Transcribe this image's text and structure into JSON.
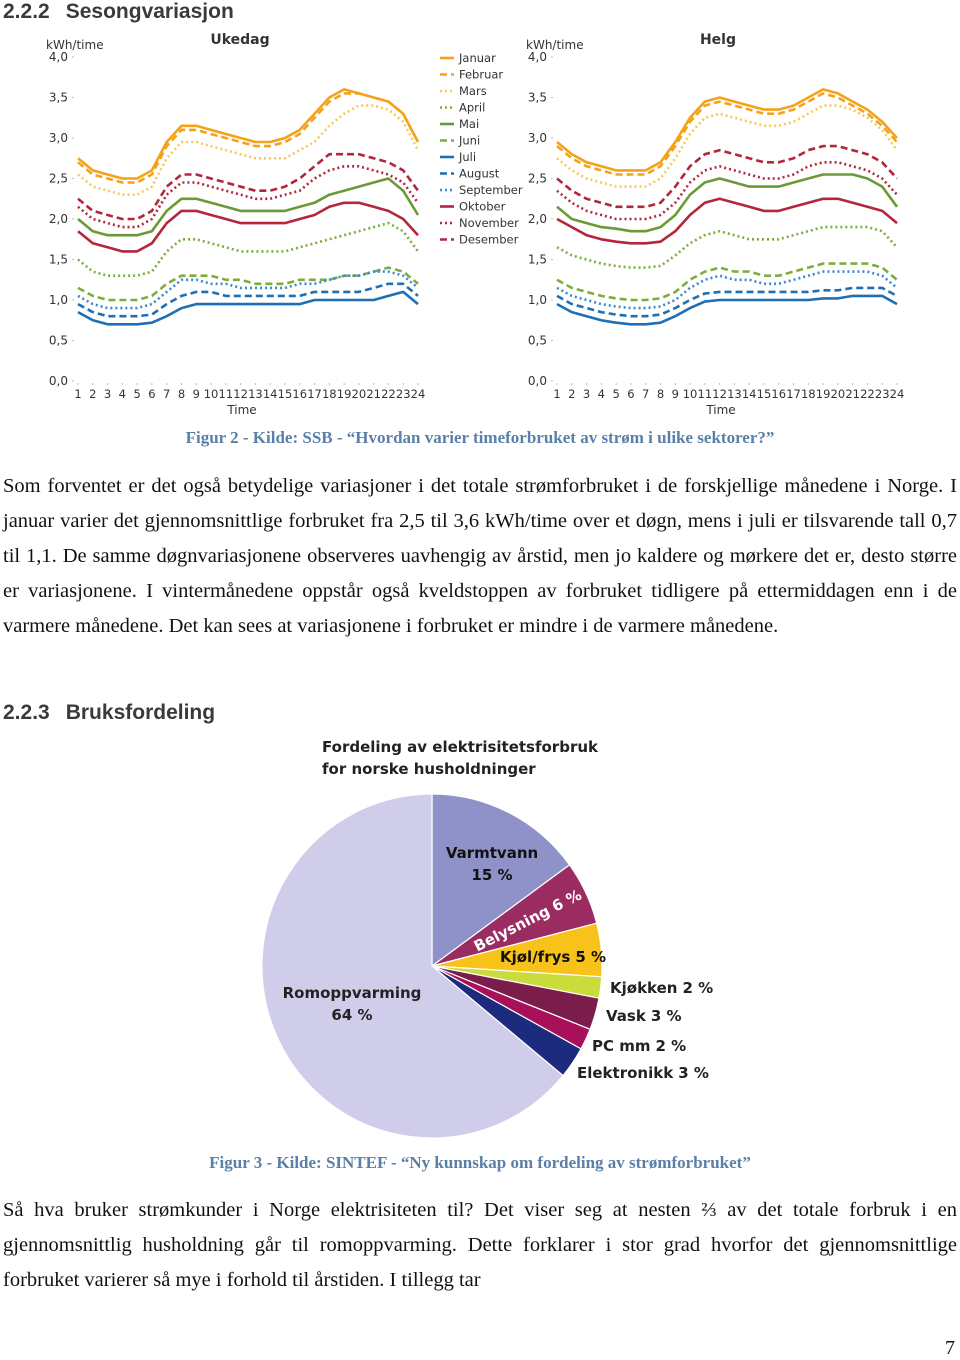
{
  "heading1": {
    "number": "2.2.2",
    "title": "Sesongvariasjon"
  },
  "caption1": "Figur 2 - Kilde: SSB - “Hvordan varier timeforbruket av strøm i ulike sektorer?”",
  "paragraph1": "Som forventet er det også betydelige variasjoner i det totale strømforbruket i de forskjellige månedene i Norge. I januar varier det gjennomsnittlige forbruket fra 2,5 til 3,6 kWh/time over et døgn, mens i juli er tilsvarende tall 0,7 til 1,1. De samme døgnvariasjonene observeres uavhengig av årstid, men jo kaldere og mørkere det er, desto større er variasjonene. I vintermånedene oppstår også kveldstoppen av forbruket tidligere på ettermiddagen enn i de varmere månedene. Det kan sees at variasjonene i forbruket er mindre i de varmere månedene.",
  "heading2": {
    "number": "2.2.3",
    "title": "Bruksfordeling"
  },
  "caption2": "Figur 3 - Kilde: SINTEF - “Ny kunnskap om fordeling av strømforbruket”",
  "paragraph2": "Så hva bruker strømkunder i Norge elektrisiteten til? Det viser seg at nesten ⅔ av det totale forbruk i en gjennomsnittlig husholdning går til romoppvarming. Dette forklarer i stor grad hvorfor det gjennomsnittlige forbruket varierer så mye i forhold til årstiden. I tillegg tar",
  "page_number": "7",
  "chart_data": [
    {
      "type": "line",
      "title": "Ukedag",
      "y_label": "kWh/time",
      "x_label": "Time",
      "x": [
        1,
        2,
        3,
        4,
        5,
        6,
        7,
        8,
        9,
        10,
        11,
        12,
        13,
        14,
        15,
        16,
        17,
        18,
        19,
        20,
        21,
        22,
        23,
        24
      ],
      "xlim": [
        1,
        24
      ],
      "xticks": [
        1,
        2,
        3,
        4,
        5,
        6,
        7,
        8,
        9,
        10,
        11,
        12,
        13,
        14,
        15,
        16,
        17,
        18,
        19,
        20,
        21,
        22,
        23,
        24
      ],
      "ylim": [
        0,
        4
      ],
      "yticks": [
        {
          "value": 0,
          "label": "0,0"
        },
        {
          "value": 0.5,
          "label": "0,5"
        },
        {
          "value": 1,
          "label": "1,0"
        },
        {
          "value": 1.5,
          "label": "1,5"
        },
        {
          "value": 2,
          "label": "2,0"
        },
        {
          "value": 2.5,
          "label": "2,5"
        },
        {
          "value": 3,
          "label": "3,0"
        },
        {
          "value": 3.5,
          "label": "3,5"
        },
        {
          "value": 4,
          "label": "4,0"
        }
      ],
      "series": [
        {
          "name": "Januar",
          "color": "#f5a21b",
          "dash": "solid",
          "values": [
            2.75,
            2.6,
            2.55,
            2.5,
            2.5,
            2.6,
            2.95,
            3.15,
            3.15,
            3.1,
            3.05,
            3.0,
            2.95,
            2.95,
            3.0,
            3.1,
            3.3,
            3.5,
            3.6,
            3.55,
            3.5,
            3.45,
            3.3,
            2.95
          ]
        },
        {
          "name": "Februar",
          "color": "#f5a21b",
          "dash": "dashed",
          "values": [
            2.7,
            2.55,
            2.5,
            2.45,
            2.45,
            2.55,
            2.9,
            3.1,
            3.1,
            3.05,
            3.0,
            2.95,
            2.9,
            2.9,
            2.95,
            3.05,
            3.25,
            3.45,
            3.55,
            3.55,
            3.5,
            3.45,
            3.3,
            2.95
          ]
        },
        {
          "name": "Mars",
          "color": "#f8c95a",
          "dash": "dotted",
          "values": [
            2.55,
            2.4,
            2.35,
            2.3,
            2.3,
            2.4,
            2.75,
            2.95,
            2.95,
            2.9,
            2.85,
            2.8,
            2.75,
            2.75,
            2.75,
            2.85,
            2.95,
            3.15,
            3.3,
            3.4,
            3.4,
            3.35,
            3.2,
            2.85
          ]
        },
        {
          "name": "April",
          "color": "#7cae3e",
          "dash": "dotted",
          "values": [
            1.5,
            1.35,
            1.3,
            1.3,
            1.3,
            1.35,
            1.6,
            1.75,
            1.75,
            1.7,
            1.65,
            1.6,
            1.6,
            1.6,
            1.6,
            1.65,
            1.7,
            1.75,
            1.8,
            1.85,
            1.9,
            1.95,
            1.85,
            1.6
          ]
        },
        {
          "name": "Mai",
          "color": "#6a9a36",
          "dash": "solid",
          "values": [
            2.0,
            1.85,
            1.8,
            1.8,
            1.8,
            1.85,
            2.1,
            2.25,
            2.25,
            2.2,
            2.15,
            2.1,
            2.1,
            2.1,
            2.1,
            2.15,
            2.2,
            2.3,
            2.35,
            2.4,
            2.45,
            2.5,
            2.35,
            2.05
          ]
        },
        {
          "name": "Juni",
          "color": "#7cae3e",
          "dash": "dashed",
          "values": [
            1.15,
            1.05,
            1.0,
            1.0,
            1.0,
            1.05,
            1.2,
            1.3,
            1.3,
            1.3,
            1.25,
            1.25,
            1.2,
            1.2,
            1.2,
            1.25,
            1.25,
            1.25,
            1.3,
            1.3,
            1.35,
            1.4,
            1.35,
            1.2
          ]
        },
        {
          "name": "Juli",
          "color": "#1f6fb5",
          "dash": "solid",
          "values": [
            0.85,
            0.75,
            0.7,
            0.7,
            0.7,
            0.72,
            0.8,
            0.9,
            0.95,
            0.95,
            0.95,
            0.95,
            0.95,
            0.95,
            0.95,
            0.95,
            1.0,
            1.0,
            1.0,
            1.0,
            1.0,
            1.05,
            1.1,
            0.95
          ]
        },
        {
          "name": "August",
          "color": "#1f6fb5",
          "dash": "dashed",
          "values": [
            0.95,
            0.85,
            0.8,
            0.8,
            0.8,
            0.82,
            0.95,
            1.05,
            1.1,
            1.1,
            1.05,
            1.05,
            1.05,
            1.05,
            1.05,
            1.05,
            1.1,
            1.1,
            1.1,
            1.1,
            1.15,
            1.2,
            1.2,
            1.05
          ]
        },
        {
          "name": "September",
          "color": "#3a8ad0",
          "dash": "dotted",
          "values": [
            1.05,
            0.95,
            0.9,
            0.9,
            0.9,
            0.95,
            1.1,
            1.25,
            1.25,
            1.2,
            1.2,
            1.15,
            1.15,
            1.15,
            1.15,
            1.2,
            1.2,
            1.25,
            1.3,
            1.3,
            1.35,
            1.35,
            1.3,
            1.15
          ]
        },
        {
          "name": "Oktober",
          "color": "#b3263b",
          "dash": "solid",
          "values": [
            1.85,
            1.7,
            1.65,
            1.6,
            1.6,
            1.7,
            1.95,
            2.1,
            2.1,
            2.05,
            2.0,
            1.95,
            1.95,
            1.95,
            1.95,
            2.0,
            2.05,
            2.15,
            2.2,
            2.2,
            2.15,
            2.1,
            2.0,
            1.8
          ]
        },
        {
          "name": "November",
          "color": "#b3263b",
          "dash": "dotted",
          "values": [
            2.15,
            2.0,
            1.95,
            1.9,
            1.9,
            2.0,
            2.3,
            2.45,
            2.45,
            2.4,
            2.35,
            2.3,
            2.25,
            2.25,
            2.3,
            2.35,
            2.5,
            2.6,
            2.65,
            2.65,
            2.6,
            2.55,
            2.45,
            2.2
          ]
        },
        {
          "name": "Desember",
          "color": "#b3263b",
          "dash": "dashed",
          "values": [
            2.25,
            2.1,
            2.05,
            2.0,
            2.0,
            2.1,
            2.4,
            2.55,
            2.55,
            2.5,
            2.45,
            2.4,
            2.35,
            2.35,
            2.4,
            2.5,
            2.65,
            2.8,
            2.8,
            2.8,
            2.75,
            2.7,
            2.6,
            2.35
          ]
        }
      ]
    },
    {
      "type": "line",
      "title": "Helg",
      "y_label": "kWh/time",
      "x_label": "Time",
      "x": [
        1,
        2,
        3,
        4,
        5,
        6,
        7,
        8,
        9,
        10,
        11,
        12,
        13,
        14,
        15,
        16,
        17,
        18,
        19,
        20,
        21,
        22,
        23,
        24
      ],
      "xlim": [
        1,
        24
      ],
      "xticks": [
        1,
        2,
        3,
        4,
        5,
        6,
        7,
        8,
        9,
        10,
        11,
        12,
        13,
        14,
        15,
        16,
        17,
        18,
        19,
        20,
        21,
        22,
        23,
        24
      ],
      "ylim": [
        0,
        4
      ],
      "yticks": [
        {
          "value": 0,
          "label": "0,0"
        },
        {
          "value": 0.5,
          "label": "0,5"
        },
        {
          "value": 1,
          "label": "1,0"
        },
        {
          "value": 1.5,
          "label": "1,5"
        },
        {
          "value": 2,
          "label": "2,0"
        },
        {
          "value": 2.5,
          "label": "2,5"
        },
        {
          "value": 3,
          "label": "3,0"
        },
        {
          "value": 3.5,
          "label": "3,5"
        },
        {
          "value": 4,
          "label": "4,0"
        }
      ],
      "series": [
        {
          "color": "#f5a21b",
          "dash": "solid",
          "values": [
            2.95,
            2.8,
            2.7,
            2.65,
            2.6,
            2.6,
            2.6,
            2.7,
            2.95,
            3.25,
            3.45,
            3.5,
            3.45,
            3.4,
            3.35,
            3.35,
            3.4,
            3.5,
            3.6,
            3.55,
            3.45,
            3.35,
            3.2,
            3.0
          ]
        },
        {
          "color": "#f5a21b",
          "dash": "dashed",
          "values": [
            2.9,
            2.75,
            2.65,
            2.6,
            2.55,
            2.55,
            2.55,
            2.65,
            2.9,
            3.2,
            3.4,
            3.45,
            3.4,
            3.35,
            3.3,
            3.3,
            3.35,
            3.45,
            3.55,
            3.5,
            3.4,
            3.3,
            3.15,
            2.95
          ]
        },
        {
          "color": "#f8c95a",
          "dash": "dotted",
          "values": [
            2.75,
            2.6,
            2.5,
            2.45,
            2.4,
            2.4,
            2.4,
            2.5,
            2.75,
            3.05,
            3.25,
            3.3,
            3.25,
            3.2,
            3.15,
            3.15,
            3.2,
            3.3,
            3.4,
            3.4,
            3.35,
            3.25,
            3.1,
            2.85
          ]
        },
        {
          "color": "#7cae3e",
          "dash": "dotted",
          "values": [
            1.65,
            1.55,
            1.5,
            1.45,
            1.42,
            1.4,
            1.4,
            1.42,
            1.55,
            1.7,
            1.8,
            1.85,
            1.8,
            1.75,
            1.75,
            1.75,
            1.8,
            1.85,
            1.9,
            1.9,
            1.9,
            1.9,
            1.85,
            1.65
          ]
        },
        {
          "color": "#6a9a36",
          "dash": "solid",
          "values": [
            2.15,
            2.0,
            1.95,
            1.9,
            1.88,
            1.85,
            1.85,
            1.9,
            2.05,
            2.3,
            2.45,
            2.5,
            2.45,
            2.4,
            2.4,
            2.4,
            2.45,
            2.5,
            2.55,
            2.55,
            2.55,
            2.5,
            2.4,
            2.15
          ]
        },
        {
          "color": "#7cae3e",
          "dash": "dashed",
          "values": [
            1.25,
            1.15,
            1.1,
            1.05,
            1.02,
            1.0,
            1.0,
            1.02,
            1.1,
            1.25,
            1.35,
            1.4,
            1.35,
            1.35,
            1.3,
            1.3,
            1.35,
            1.4,
            1.45,
            1.45,
            1.45,
            1.45,
            1.4,
            1.25
          ]
        },
        {
          "color": "#1f6fb5",
          "dash": "solid",
          "values": [
            0.95,
            0.85,
            0.8,
            0.75,
            0.72,
            0.7,
            0.7,
            0.72,
            0.8,
            0.9,
            0.98,
            1.0,
            1.0,
            1.0,
            1.0,
            1.0,
            1.0,
            1.0,
            1.02,
            1.02,
            1.05,
            1.05,
            1.05,
            0.95
          ]
        },
        {
          "color": "#1f6fb5",
          "dash": "dashed",
          "values": [
            1.05,
            0.95,
            0.9,
            0.85,
            0.82,
            0.8,
            0.8,
            0.82,
            0.9,
            1.0,
            1.08,
            1.1,
            1.1,
            1.1,
            1.1,
            1.1,
            1.1,
            1.1,
            1.12,
            1.12,
            1.15,
            1.15,
            1.15,
            1.05
          ]
        },
        {
          "color": "#3a8ad0",
          "dash": "dotted",
          "values": [
            1.15,
            1.05,
            1.0,
            0.95,
            0.92,
            0.9,
            0.9,
            0.92,
            1.0,
            1.15,
            1.25,
            1.3,
            1.25,
            1.25,
            1.2,
            1.2,
            1.25,
            1.3,
            1.35,
            1.35,
            1.35,
            1.35,
            1.3,
            1.15
          ]
        },
        {
          "color": "#b3263b",
          "dash": "solid",
          "values": [
            2.0,
            1.9,
            1.8,
            1.75,
            1.72,
            1.7,
            1.7,
            1.72,
            1.85,
            2.05,
            2.2,
            2.25,
            2.2,
            2.15,
            2.1,
            2.1,
            2.15,
            2.2,
            2.25,
            2.25,
            2.2,
            2.15,
            2.1,
            1.95
          ]
        },
        {
          "color": "#b3263b",
          "dash": "dotted",
          "values": [
            2.35,
            2.2,
            2.1,
            2.05,
            2.0,
            2.0,
            2.0,
            2.05,
            2.2,
            2.45,
            2.6,
            2.65,
            2.6,
            2.55,
            2.5,
            2.5,
            2.55,
            2.65,
            2.7,
            2.7,
            2.65,
            2.6,
            2.5,
            2.3
          ]
        },
        {
          "color": "#b3263b",
          "dash": "dashed",
          "values": [
            2.5,
            2.35,
            2.25,
            2.2,
            2.15,
            2.15,
            2.15,
            2.2,
            2.4,
            2.65,
            2.8,
            2.85,
            2.8,
            2.75,
            2.7,
            2.7,
            2.75,
            2.85,
            2.9,
            2.9,
            2.85,
            2.8,
            2.7,
            2.5
          ]
        }
      ]
    },
    {
      "type": "pie",
      "title": "Fordeling av elektrisitetsforbruk",
      "subtitle": "for norske husholdninger",
      "categories": [
        "Varmtvann",
        "Belysning",
        "Kjøl/frys",
        "Kjøkken",
        "Vask",
        "PC mm",
        "Elektronikk",
        "Romoppvarming"
      ],
      "values": [
        15,
        6,
        5,
        2,
        3,
        2,
        3,
        64
      ],
      "value_labels": [
        "15 %",
        "6 %",
        "5 %",
        "2 %",
        "3 %",
        "2 %",
        "3 %",
        "64 %"
      ],
      "colors": [
        "#8f92c8",
        "#9b2c61",
        "#f7c21a",
        "#c9dc3b",
        "#7a1d4b",
        "#a8115a",
        "#1d2b7e",
        "#cfcde9"
      ]
    }
  ]
}
